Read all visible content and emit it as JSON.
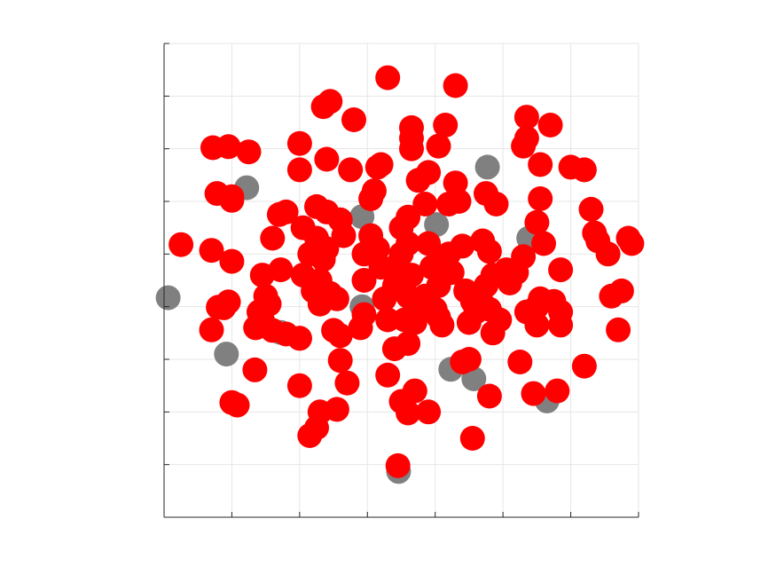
{
  "chart_data": {
    "type": "scatter",
    "title": "",
    "xlabel": "",
    "ylabel": "",
    "xlim": [
      0,
      7
    ],
    "ylim": [
      0,
      9
    ],
    "grid": true,
    "xticks": [
      0,
      1,
      2,
      3,
      4,
      5,
      6,
      7
    ],
    "yticks": [
      0,
      1,
      2,
      3,
      4,
      5,
      6,
      7,
      8,
      9
    ],
    "tick_labels_visible": false,
    "colors": {
      "red": "#ff0000",
      "gray": "#808080",
      "axis": "#262626",
      "grid": "#e6e6e6"
    },
    "series": [
      {
        "color": "#808080",
        "points": [
          [
            0.06,
            4.17
          ],
          [
            1.22,
            6.26
          ],
          [
            0.92,
            3.1
          ],
          [
            1.72,
            3.51
          ],
          [
            2.92,
            5.71
          ],
          [
            4.02,
            5.56
          ],
          [
            4.77,
            6.65
          ],
          [
            5.38,
            5.3
          ],
          [
            2.92,
            4.0
          ],
          [
            4.23,
            2.81
          ],
          [
            4.57,
            2.63
          ],
          [
            5.65,
            2.21
          ],
          [
            3.46,
            0.87
          ]
        ]
      },
      {
        "color": "#ff0000",
        "points": [
          [
            0.25,
            5.18
          ],
          [
            0.7,
            5.07
          ],
          [
            0.7,
            3.56
          ],
          [
            0.8,
            3.99
          ],
          [
            0.95,
            4.09
          ],
          [
            1.0,
            4.86
          ],
          [
            0.88,
            3.98
          ],
          [
            1.0,
            6.09
          ],
          [
            0.78,
            6.15
          ],
          [
            1.0,
            6.02
          ],
          [
            0.72,
            7.02
          ],
          [
            0.95,
            7.04
          ],
          [
            1.25,
            6.94
          ],
          [
            1.0,
            2.18
          ],
          [
            1.08,
            2.13
          ],
          [
            1.34,
            2.8
          ],
          [
            1.45,
            4.6
          ],
          [
            1.55,
            4.05
          ],
          [
            1.45,
            3.75
          ],
          [
            1.6,
            3.55
          ],
          [
            1.72,
            4.7
          ],
          [
            1.6,
            5.3
          ],
          [
            1.7,
            5.75
          ],
          [
            1.8,
            5.8
          ],
          [
            1.8,
            3.48
          ],
          [
            2.0,
            3.4
          ],
          [
            2.05,
            5.5
          ],
          [
            2.0,
            6.6
          ],
          [
            2.0,
            7.1
          ],
          [
            2.05,
            4.6
          ],
          [
            2.15,
            5.0
          ],
          [
            2.2,
            4.3
          ],
          [
            2.3,
            4.05
          ],
          [
            2.3,
            4.5
          ],
          [
            2.45,
            4.25
          ],
          [
            2.25,
            5.3
          ],
          [
            2.35,
            4.9
          ],
          [
            2.4,
            5.1
          ],
          [
            2.25,
            5.9
          ],
          [
            2.4,
            5.8
          ],
          [
            2.4,
            6.8
          ],
          [
            2.35,
            7.8
          ],
          [
            2.45,
            7.9
          ],
          [
            2.6,
            5.65
          ],
          [
            2.65,
            5.35
          ],
          [
            2.55,
            4.15
          ],
          [
            2.5,
            3.55
          ],
          [
            2.6,
            3.45
          ],
          [
            2.6,
            2.98
          ],
          [
            2.7,
            2.55
          ],
          [
            2.55,
            2.05
          ],
          [
            2.3,
            2.0
          ],
          [
            2.0,
            2.5
          ],
          [
            2.25,
            1.7
          ],
          [
            2.15,
            1.55
          ],
          [
            2.0,
            3.4
          ],
          [
            1.4,
            3.9
          ],
          [
            1.5,
            4.2
          ],
          [
            1.35,
            3.6
          ],
          [
            2.75,
            6.6
          ],
          [
            2.8,
            7.55
          ],
          [
            2.95,
            5.0
          ],
          [
            2.95,
            4.5
          ],
          [
            2.95,
            3.85
          ],
          [
            2.9,
            3.6
          ],
          [
            3.1,
            6.2
          ],
          [
            3.05,
            6.05
          ],
          [
            3.15,
            6.65
          ],
          [
            3.2,
            6.7
          ],
          [
            3.05,
            5.35
          ],
          [
            3.15,
            5.1
          ],
          [
            3.2,
            4.75
          ],
          [
            3.25,
            4.15
          ],
          [
            3.3,
            3.75
          ],
          [
            3.4,
            4.4
          ],
          [
            3.45,
            4.8
          ],
          [
            3.5,
            5.0
          ],
          [
            3.5,
            5.5
          ],
          [
            3.6,
            5.7
          ],
          [
            3.6,
            5.2
          ],
          [
            3.65,
            4.6
          ],
          [
            3.6,
            4.2
          ],
          [
            3.7,
            3.95
          ],
          [
            3.7,
            3.7
          ],
          [
            3.55,
            3.75
          ],
          [
            3.4,
            3.2
          ],
          [
            3.3,
            2.7
          ],
          [
            3.5,
            2.2
          ],
          [
            3.6,
            1.98
          ],
          [
            3.7,
            2.4
          ],
          [
            3.6,
            3.3
          ],
          [
            3.45,
            0.98
          ],
          [
            3.3,
            8.35
          ],
          [
            3.65,
            7.4
          ],
          [
            3.65,
            7.2
          ],
          [
            3.65,
            7.0
          ],
          [
            3.75,
            6.4
          ],
          [
            3.9,
            6.55
          ],
          [
            3.85,
            5.95
          ],
          [
            3.9,
            5.2
          ],
          [
            3.95,
            4.75
          ],
          [
            3.85,
            4.2
          ],
          [
            4.05,
            3.8
          ],
          [
            4.1,
            3.65
          ],
          [
            4.0,
            3.95
          ],
          [
            4.05,
            4.4
          ],
          [
            4.1,
            4.85
          ],
          [
            4.2,
            5.0
          ],
          [
            4.25,
            4.65
          ],
          [
            4.2,
            5.95
          ],
          [
            4.3,
            6.35
          ],
          [
            4.35,
            6.0
          ],
          [
            4.4,
            5.15
          ],
          [
            4.45,
            4.3
          ],
          [
            4.55,
            4.1
          ],
          [
            4.6,
            3.9
          ],
          [
            4.5,
            3.7
          ],
          [
            4.4,
            2.95
          ],
          [
            4.5,
            3.0
          ],
          [
            3.9,
            2.0
          ],
          [
            4.55,
            1.5
          ],
          [
            4.15,
            7.45
          ],
          [
            4.05,
            7.05
          ],
          [
            4.3,
            8.2
          ],
          [
            4.7,
            5.25
          ],
          [
            4.8,
            5.05
          ],
          [
            4.85,
            4.6
          ],
          [
            4.75,
            4.4
          ],
          [
            4.7,
            4.05
          ],
          [
            4.8,
            3.95
          ],
          [
            4.95,
            3.75
          ],
          [
            4.85,
            3.5
          ],
          [
            4.75,
            6.15
          ],
          [
            4.9,
            5.95
          ],
          [
            4.8,
            2.3
          ],
          [
            5.05,
            4.7
          ],
          [
            5.1,
            4.45
          ],
          [
            5.2,
            4.65
          ],
          [
            5.3,
            4.95
          ],
          [
            5.35,
            3.9
          ],
          [
            5.5,
            4.0
          ],
          [
            5.55,
            4.15
          ],
          [
            5.5,
            3.65
          ],
          [
            5.25,
            2.95
          ],
          [
            5.45,
            2.35
          ],
          [
            5.5,
            5.6
          ],
          [
            5.55,
            6.05
          ],
          [
            5.6,
            5.2
          ],
          [
            5.55,
            6.7
          ],
          [
            5.3,
            7.05
          ],
          [
            5.35,
            7.2
          ],
          [
            5.35,
            7.6
          ],
          [
            5.7,
            7.45
          ],
          [
            5.85,
            4.7
          ],
          [
            5.75,
            4.1
          ],
          [
            5.85,
            3.65
          ],
          [
            5.85,
            3.9
          ],
          [
            6.2,
            6.6
          ],
          [
            6.3,
            5.85
          ],
          [
            6.35,
            5.4
          ],
          [
            6.4,
            5.25
          ],
          [
            6.55,
            5.0
          ],
          [
            6.0,
            6.65
          ],
          [
            6.6,
            4.2
          ],
          [
            6.7,
            3.56
          ],
          [
            6.75,
            4.3
          ],
          [
            6.85,
            5.3
          ],
          [
            6.9,
            5.2
          ],
          [
            6.2,
            2.87
          ],
          [
            5.8,
            2.4
          ]
        ]
      }
    ]
  }
}
